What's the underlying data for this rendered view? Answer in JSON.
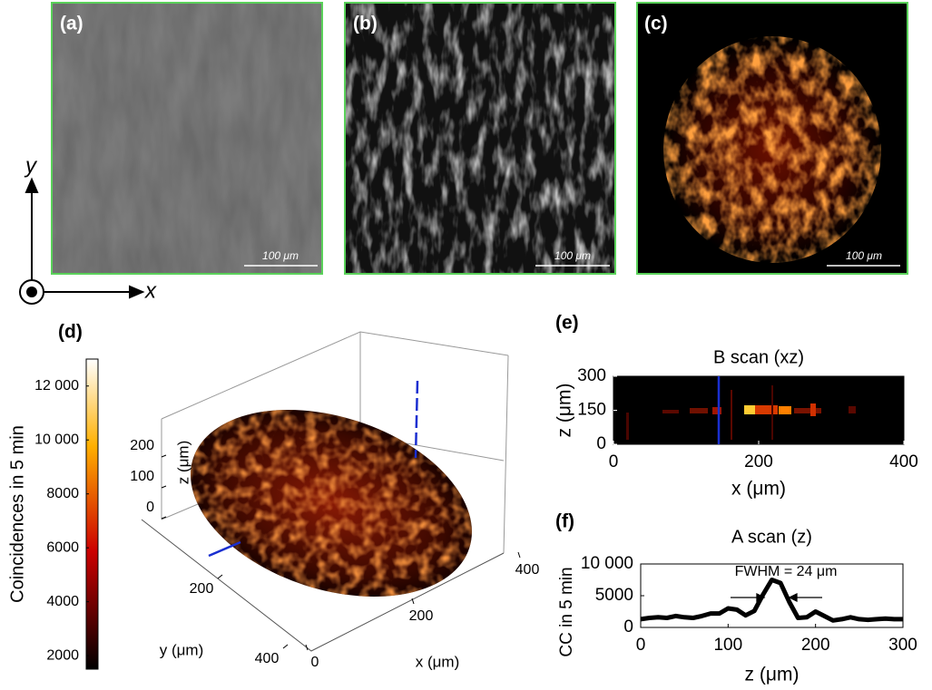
{
  "panel_labels": [
    "(a)",
    "(b)",
    "(c)",
    "(d)",
    "(e)",
    "(f)"
  ],
  "scale_bar": "100 μm",
  "axes_icon": {
    "y": "y",
    "x": "x"
  },
  "chart_data": [
    {
      "type": "colorbar",
      "label": "Coincidences in 5 min",
      "ylim": [
        1500,
        13000
      ],
      "yticks": [
        2000,
        4000,
        6000,
        8000,
        {
          "value": 10000,
          "label": "10 000"
        },
        {
          "value": 12000,
          "label": "12 000"
        }
      ]
    },
    {
      "type": "surface3d",
      "xlabel": "x (μm)",
      "ylabel": "y (μm)",
      "zlabel": "z (μm)",
      "xlim": [
        0,
        400
      ],
      "ylim": [
        0,
        400
      ],
      "zlim": [
        0,
        250
      ],
      "xticks": [
        0,
        200,
        400
      ],
      "yticks": [
        200,
        400
      ],
      "zticks": [
        0,
        100,
        200
      ]
    },
    {
      "type": "heatmap",
      "title": "B scan (xz)",
      "xlabel": "x (μm)",
      "ylabel": "z (μm)",
      "xlim": [
        0,
        400
      ],
      "xticks": [
        0,
        200,
        400
      ],
      "ylim": [
        0,
        300
      ],
      "yticks": [
        0,
        150,
        300
      ],
      "cursor_x": 145
    },
    {
      "type": "line",
      "title": "A scan (z)",
      "xlabel": "z (μm)",
      "ylabel": "CC in 5 min",
      "annotation": "FWHM = 24 μm",
      "x": [
        0,
        10,
        20,
        30,
        40,
        50,
        60,
        70,
        80,
        90,
        100,
        110,
        120,
        130,
        140,
        150,
        160,
        170,
        180,
        190,
        200,
        210,
        220,
        230,
        240,
        250,
        260,
        270,
        280,
        290,
        300
      ],
      "values": [
        1300,
        1500,
        1600,
        1500,
        1800,
        1600,
        1500,
        1800,
        2200,
        2200,
        3000,
        2800,
        1900,
        2600,
        5200,
        7500,
        7000,
        4000,
        1500,
        1600,
        2500,
        1800,
        1100,
        1300,
        1600,
        1300,
        1200,
        1300,
        1400,
        1300,
        1300
      ],
      "color": "#000000",
      "xlim": [
        0,
        300
      ],
      "xticks": [
        0,
        100,
        200,
        300
      ],
      "ylim": [
        0,
        10000
      ],
      "yticks": [
        0,
        5000,
        {
          "value": 10000,
          "label": "10 000"
        }
      ]
    }
  ]
}
